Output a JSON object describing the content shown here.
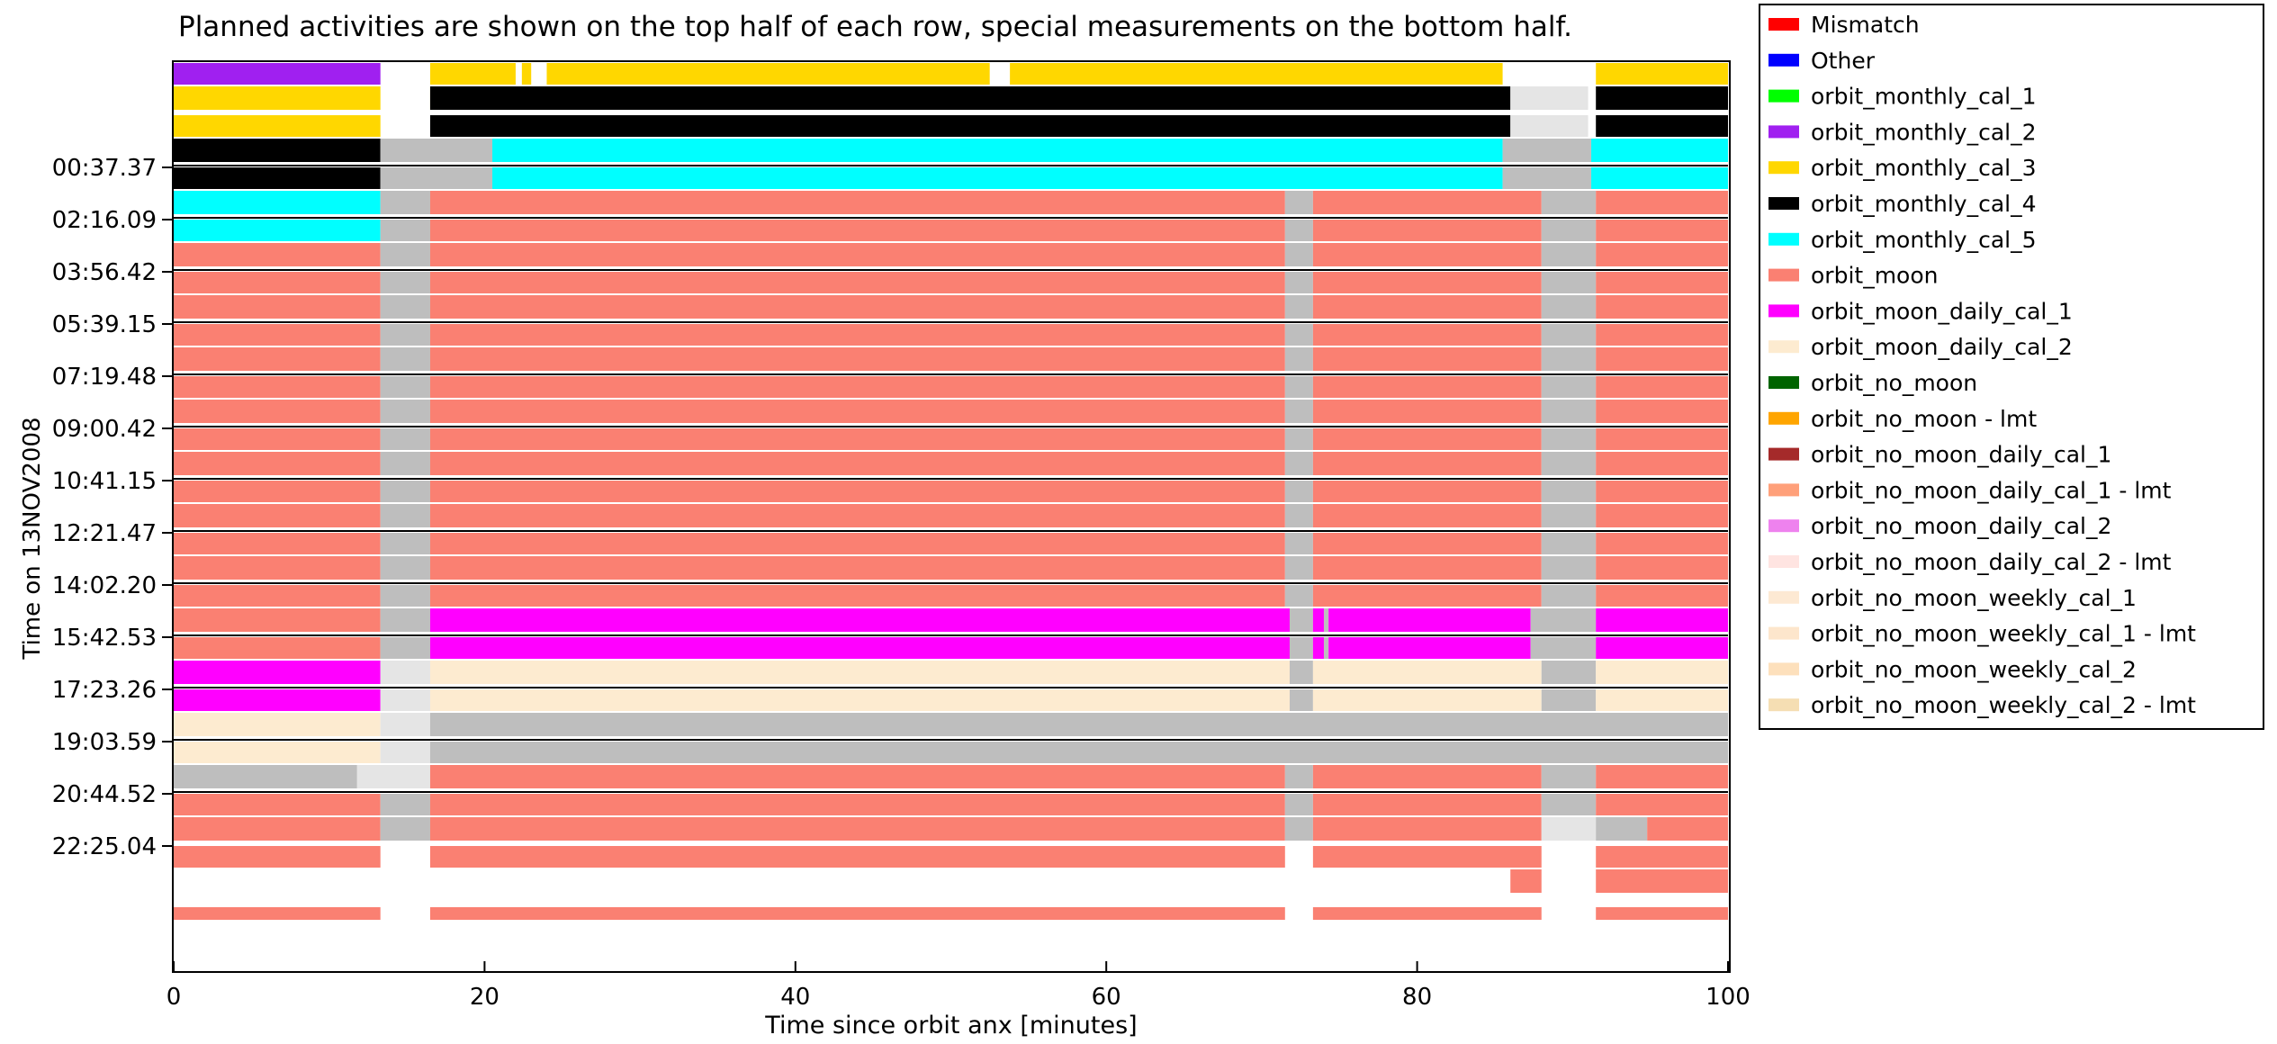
{
  "chart_data": {
    "type": "bar",
    "subtitle": "Planned activities are shown on the top half of each row, special measurements on the bottom half.",
    "xlabel": "Time since orbit anx [minutes]",
    "ylabel": "Time on 13NOV2008",
    "xlim": [
      0,
      100
    ],
    "x_ticks": [
      "0",
      "20",
      "40",
      "60",
      "80",
      "100"
    ],
    "y_ticks": [
      "00:37.37",
      "02:16.09",
      "03:56.42",
      "05:39.15",
      "07:19.48",
      "09:00.42",
      "10:41.15",
      "12:21.47",
      "14:02.20",
      "15:42.53",
      "17:23.26",
      "19:03.59",
      "20:44.52",
      "22:25.04"
    ],
    "legend_position": "right",
    "legend": [
      {
        "label": "Mismatch",
        "color": "#ff0000"
      },
      {
        "label": "Other",
        "color": "#0000ff"
      },
      {
        "label": "orbit_monthly_cal_1",
        "color": "#00ff00"
      },
      {
        "label": "orbit_monthly_cal_2",
        "color": "#a020f0"
      },
      {
        "label": "orbit_monthly_cal_3",
        "color": "#ffd700"
      },
      {
        "label": "orbit_monthly_cal_4",
        "color": "#000000"
      },
      {
        "label": "orbit_monthly_cal_5",
        "color": "#00ffff"
      },
      {
        "label": "orbit_moon",
        "color": "#fa8072"
      },
      {
        "label": "orbit_moon_daily_cal_1",
        "color": "#ff00ff"
      },
      {
        "label": "orbit_moon_daily_cal_2",
        "color": "#fdebd0"
      },
      {
        "label": "orbit_no_moon",
        "color": "#006400"
      },
      {
        "label": "orbit_no_moon - lmt",
        "color": "#ffa500"
      },
      {
        "label": "orbit_no_moon_daily_cal_1",
        "color": "#a52a2a"
      },
      {
        "label": "orbit_no_moon_daily_cal_1 - lmt",
        "color": "#ffa07a"
      },
      {
        "label": "orbit_no_moon_daily_cal_2",
        "color": "#ee82ee"
      },
      {
        "label": "orbit_no_moon_daily_cal_2 - lmt",
        "color": "#ffe4e1"
      },
      {
        "label": "orbit_no_moon_weekly_cal_1",
        "color": "#fde9d3"
      },
      {
        "label": "orbit_no_moon_weekly_cal_1 - lmt",
        "color": "#fde6cc"
      },
      {
        "label": "orbit_no_moon_weekly_cal_2",
        "color": "#fde0bc"
      },
      {
        "label": "orbit_no_moon_weekly_cal_2 - lmt",
        "color": "#f5deb3"
      }
    ],
    "colors": {
      "Y": "#ffd700",
      "P": "#a020f0",
      "K": "#000000",
      "C": "#00ffff",
      "S": "#fa8072",
      "M": "#ff00ff",
      "B": "#fdebd0",
      "G": "#bebebe",
      "L": "#e5e5e5"
    },
    "rows": [
      {
        "top": [
          [
            "P",
            0,
            13.3
          ],
          [
            "Y",
            16.5,
            22
          ],
          [
            "Y",
            22.4,
            23
          ],
          [
            "Y",
            24,
            52.5
          ],
          [
            "Y",
            53.8,
            85.5
          ],
          [
            "Y",
            91.5,
            100.3
          ]
        ],
        "bottom": [
          [
            "Y",
            0,
            13.3
          ],
          [
            "Y",
            16.5,
            19.5
          ],
          [
            "Y",
            22,
            22.4
          ],
          [
            "Y",
            22.8,
            23
          ],
          [
            "Y",
            24.3,
            24.5
          ],
          [
            "K",
            16.5,
            86
          ],
          [
            "L",
            86,
            91
          ],
          [
            "K",
            91.5,
            100.3
          ]
        ]
      },
      {
        "top": [
          [
            "Y",
            0,
            13.3
          ],
          [
            "K",
            16.5,
            86
          ],
          [
            "L",
            86,
            91
          ],
          [
            "K",
            91.5,
            100.3
          ]
        ],
        "bottom": [
          [
            "K",
            0,
            13.3
          ],
          [
            "G",
            13.3,
            20.5
          ],
          [
            "C",
            20.5,
            85.5
          ],
          [
            "G",
            85.5,
            91.2
          ],
          [
            "C",
            91.2,
            100.3
          ]
        ]
      },
      {
        "top": [
          [
            "K",
            0,
            13.3
          ],
          [
            "G",
            13.3,
            20.5
          ],
          [
            "C",
            20.5,
            85.5
          ],
          [
            "G",
            85.5,
            91.2
          ],
          [
            "C",
            91.2,
            100.3
          ]
        ],
        "bottom": [
          [
            "C",
            0,
            13.3
          ],
          [
            "G",
            13.3,
            16.5
          ],
          [
            "S",
            16.5,
            71.5
          ],
          [
            "G",
            71.5,
            73.3
          ],
          [
            "S",
            73.3,
            88
          ],
          [
            "G",
            88,
            91.5
          ],
          [
            "S",
            91.5,
            100.3
          ]
        ]
      },
      {
        "top": [
          [
            "C",
            0,
            13.3
          ],
          [
            "G",
            13.3,
            16.5
          ],
          [
            "S",
            16.5,
            71.5
          ],
          [
            "G",
            71.5,
            73.3
          ],
          [
            "S",
            73.3,
            88
          ],
          [
            "G",
            88,
            91.5
          ],
          [
            "S",
            91.5,
            100.3
          ]
        ],
        "bottom": [
          [
            "S",
            0,
            13.3
          ],
          [
            "G",
            13.3,
            16.5
          ],
          [
            "S",
            16.5,
            71.5
          ],
          [
            "G",
            71.5,
            73.3
          ],
          [
            "S",
            73.3,
            88
          ],
          [
            "G",
            88,
            91.5
          ],
          [
            "S",
            91.5,
            100.3
          ]
        ]
      },
      {
        "top": [
          [
            "S",
            0,
            13.3
          ],
          [
            "G",
            13.3,
            16.5
          ],
          [
            "S",
            16.5,
            71.5
          ],
          [
            "G",
            71.5,
            73.3
          ],
          [
            "S",
            73.3,
            88
          ],
          [
            "G",
            88,
            91.5
          ],
          [
            "S",
            91.5,
            100.3
          ]
        ],
        "bottom": [
          [
            "S",
            0,
            13.3
          ],
          [
            "G",
            13.3,
            16.5
          ],
          [
            "S",
            16.5,
            71.5
          ],
          [
            "G",
            71.5,
            73.3
          ],
          [
            "S",
            73.3,
            88
          ],
          [
            "G",
            88,
            91.5
          ],
          [
            "S",
            91.5,
            100.3
          ]
        ]
      },
      {
        "top": [
          [
            "S",
            0,
            13.3
          ],
          [
            "G",
            13.3,
            16.5
          ],
          [
            "S",
            16.5,
            71.5
          ],
          [
            "G",
            71.5,
            73.3
          ],
          [
            "S",
            73.3,
            88
          ],
          [
            "G",
            88,
            91.5
          ],
          [
            "S",
            91.5,
            100.3
          ]
        ],
        "bottom": [
          [
            "S",
            0,
            13.3
          ],
          [
            "G",
            13.3,
            16.5
          ],
          [
            "S",
            16.5,
            71.5
          ],
          [
            "G",
            71.5,
            73.3
          ],
          [
            "S",
            73.3,
            88
          ],
          [
            "G",
            88,
            91.5
          ],
          [
            "S",
            91.5,
            100.3
          ]
        ]
      },
      {
        "top": [
          [
            "S",
            0,
            13.3
          ],
          [
            "G",
            13.3,
            16.5
          ],
          [
            "S",
            16.5,
            71.5
          ],
          [
            "G",
            71.5,
            73.3
          ],
          [
            "S",
            73.3,
            88
          ],
          [
            "G",
            88,
            91.5
          ],
          [
            "S",
            91.5,
            100.3
          ]
        ],
        "bottom": [
          [
            "S",
            0,
            13.3
          ],
          [
            "G",
            13.3,
            16.5
          ],
          [
            "S",
            16.5,
            71.5
          ],
          [
            "G",
            71.5,
            73.3
          ],
          [
            "S",
            73.3,
            88
          ],
          [
            "G",
            88,
            91.5
          ],
          [
            "S",
            91.5,
            100.3
          ]
        ]
      },
      {
        "top": [
          [
            "S",
            0,
            13.3
          ],
          [
            "G",
            13.3,
            16.5
          ],
          [
            "S",
            16.5,
            71.5
          ],
          [
            "G",
            71.5,
            73.3
          ],
          [
            "S",
            73.3,
            88
          ],
          [
            "G",
            88,
            91.5
          ],
          [
            "S",
            91.5,
            100.3
          ]
        ],
        "bottom": [
          [
            "S",
            0,
            13.3
          ],
          [
            "G",
            13.3,
            16.5
          ],
          [
            "S",
            16.5,
            71.5
          ],
          [
            "G",
            71.5,
            73.3
          ],
          [
            "S",
            73.3,
            88
          ],
          [
            "G",
            88,
            91.5
          ],
          [
            "S",
            91.5,
            100.3
          ]
        ]
      },
      {
        "top": [
          [
            "S",
            0,
            13.3
          ],
          [
            "G",
            13.3,
            16.5
          ],
          [
            "S",
            16.5,
            71.5
          ],
          [
            "G",
            71.5,
            73.3
          ],
          [
            "S",
            73.3,
            88
          ],
          [
            "G",
            88,
            91.5
          ],
          [
            "S",
            91.5,
            100.3
          ]
        ],
        "bottom": [
          [
            "S",
            0,
            13.3
          ],
          [
            "G",
            13.3,
            16.5
          ],
          [
            "S",
            16.5,
            71.5
          ],
          [
            "G",
            71.5,
            73.3
          ],
          [
            "S",
            73.3,
            88
          ],
          [
            "G",
            88,
            91.5
          ],
          [
            "S",
            91.5,
            100.3
          ]
        ]
      },
      {
        "top": [
          [
            "S",
            0,
            13.3
          ],
          [
            "G",
            13.3,
            16.5
          ],
          [
            "S",
            16.5,
            71.5
          ],
          [
            "G",
            71.5,
            73.3
          ],
          [
            "S",
            73.3,
            88
          ],
          [
            "G",
            88,
            91.5
          ],
          [
            "S",
            91.5,
            100.3
          ]
        ],
        "bottom": [
          [
            "S",
            0,
            13.3
          ],
          [
            "G",
            13.3,
            16.5
          ],
          [
            "S",
            16.5,
            71.5
          ],
          [
            "G",
            71.5,
            73.3
          ],
          [
            "S",
            73.3,
            88
          ],
          [
            "G",
            88,
            91.5
          ],
          [
            "S",
            91.5,
            100.3
          ]
        ]
      },
      {
        "top": [
          [
            "S",
            0,
            13.3
          ],
          [
            "G",
            13.3,
            16.5
          ],
          [
            "S",
            16.5,
            71.5
          ],
          [
            "G",
            71.5,
            73.3
          ],
          [
            "S",
            73.3,
            88
          ],
          [
            "G",
            88,
            91.5
          ],
          [
            "S",
            91.5,
            100.3
          ]
        ],
        "bottom": [
          [
            "S",
            0,
            13.3
          ],
          [
            "G",
            13.3,
            16.5
          ],
          [
            "M",
            16.5,
            71.8
          ],
          [
            "G",
            71.8,
            73.3
          ],
          [
            "M",
            73.3,
            74
          ],
          [
            "G",
            74,
            74.3
          ],
          [
            "M",
            74.3,
            87.3
          ],
          [
            "G",
            87.3,
            91.5
          ],
          [
            "M",
            91.5,
            100.3
          ]
        ]
      },
      {
        "top": [
          [
            "S",
            0,
            13.3
          ],
          [
            "G",
            13.3,
            16.5
          ],
          [
            "M",
            16.5,
            71.8
          ],
          [
            "G",
            71.8,
            73.3
          ],
          [
            "M",
            73.3,
            74
          ],
          [
            "G",
            74,
            74.3
          ],
          [
            "M",
            74.3,
            87.3
          ],
          [
            "G",
            87.3,
            91.5
          ],
          [
            "M",
            91.5,
            100.3
          ]
        ],
        "bottom": [
          [
            "M",
            0,
            13.3
          ],
          [
            "L",
            13.3,
            16.5
          ],
          [
            "B",
            16.5,
            71.8
          ],
          [
            "G",
            71.8,
            73.3
          ],
          [
            "B",
            73.3,
            88
          ],
          [
            "G",
            88,
            91.5
          ],
          [
            "B",
            91.5,
            100.3
          ]
        ]
      },
      {
        "top": [
          [
            "M",
            0,
            13.3
          ],
          [
            "L",
            13.3,
            16.5
          ],
          [
            "B",
            16.5,
            71.8
          ],
          [
            "G",
            71.8,
            73.3
          ],
          [
            "B",
            73.3,
            88
          ],
          [
            "G",
            88,
            91.5
          ],
          [
            "B",
            91.5,
            100.3
          ]
        ],
        "bottom": [
          [
            "B",
            0,
            13.3
          ],
          [
            "L",
            13.3,
            16.5
          ],
          [
            "G",
            16.5,
            100.3
          ]
        ]
      },
      {
        "top": [
          [
            "B",
            0,
            13.3
          ],
          [
            "L",
            13.3,
            16.5
          ],
          [
            "G",
            16.5,
            100.3
          ]
        ],
        "bottom": [
          [
            "G",
            0,
            11.8
          ],
          [
            "L",
            11.8,
            16.5
          ],
          [
            "S",
            16.5,
            71.5
          ],
          [
            "G",
            71.5,
            73.3
          ],
          [
            "S",
            73.3,
            88
          ],
          [
            "G",
            88,
            91.5
          ],
          [
            "S",
            91.5,
            100.3
          ]
        ]
      },
      {
        "top": [
          [
            "S",
            0,
            13.3
          ],
          [
            "G",
            13.3,
            16.5
          ],
          [
            "S",
            16.5,
            71.5
          ],
          [
            "G",
            71.5,
            73.3
          ],
          [
            "S",
            73.3,
            88
          ],
          [
            "G",
            88,
            91.5
          ],
          [
            "S",
            91.5,
            100.3
          ]
        ],
        "bottom": [
          [
            "S",
            0,
            13.3
          ],
          [
            "G",
            13.3,
            16.5
          ],
          [
            "S",
            16.5,
            71.5
          ],
          [
            "G",
            71.5,
            73.3
          ],
          [
            "S",
            73.3,
            88
          ],
          [
            "L",
            88,
            91.5
          ],
          [
            "G",
            91.5,
            94.8
          ],
          [
            "S",
            94.8,
            100.3
          ]
        ]
      },
      {
        "top": [
          [
            "S",
            0,
            13.3
          ],
          [
            "S",
            16.5,
            71.5
          ],
          [
            "S",
            73.3,
            88
          ],
          [
            "S",
            91.5,
            100.3
          ]
        ],
        "bottom": [
          [
            "S",
            86,
            88
          ],
          [
            "S",
            91.5,
            100.3
          ]
        ]
      }
    ],
    "extra_strip": [
      [
        "S",
        0,
        13.3
      ],
      [
        "S",
        16.5,
        71.5
      ],
      [
        "S",
        73.3,
        88
      ],
      [
        "S",
        91.5,
        100.3
      ]
    ]
  }
}
